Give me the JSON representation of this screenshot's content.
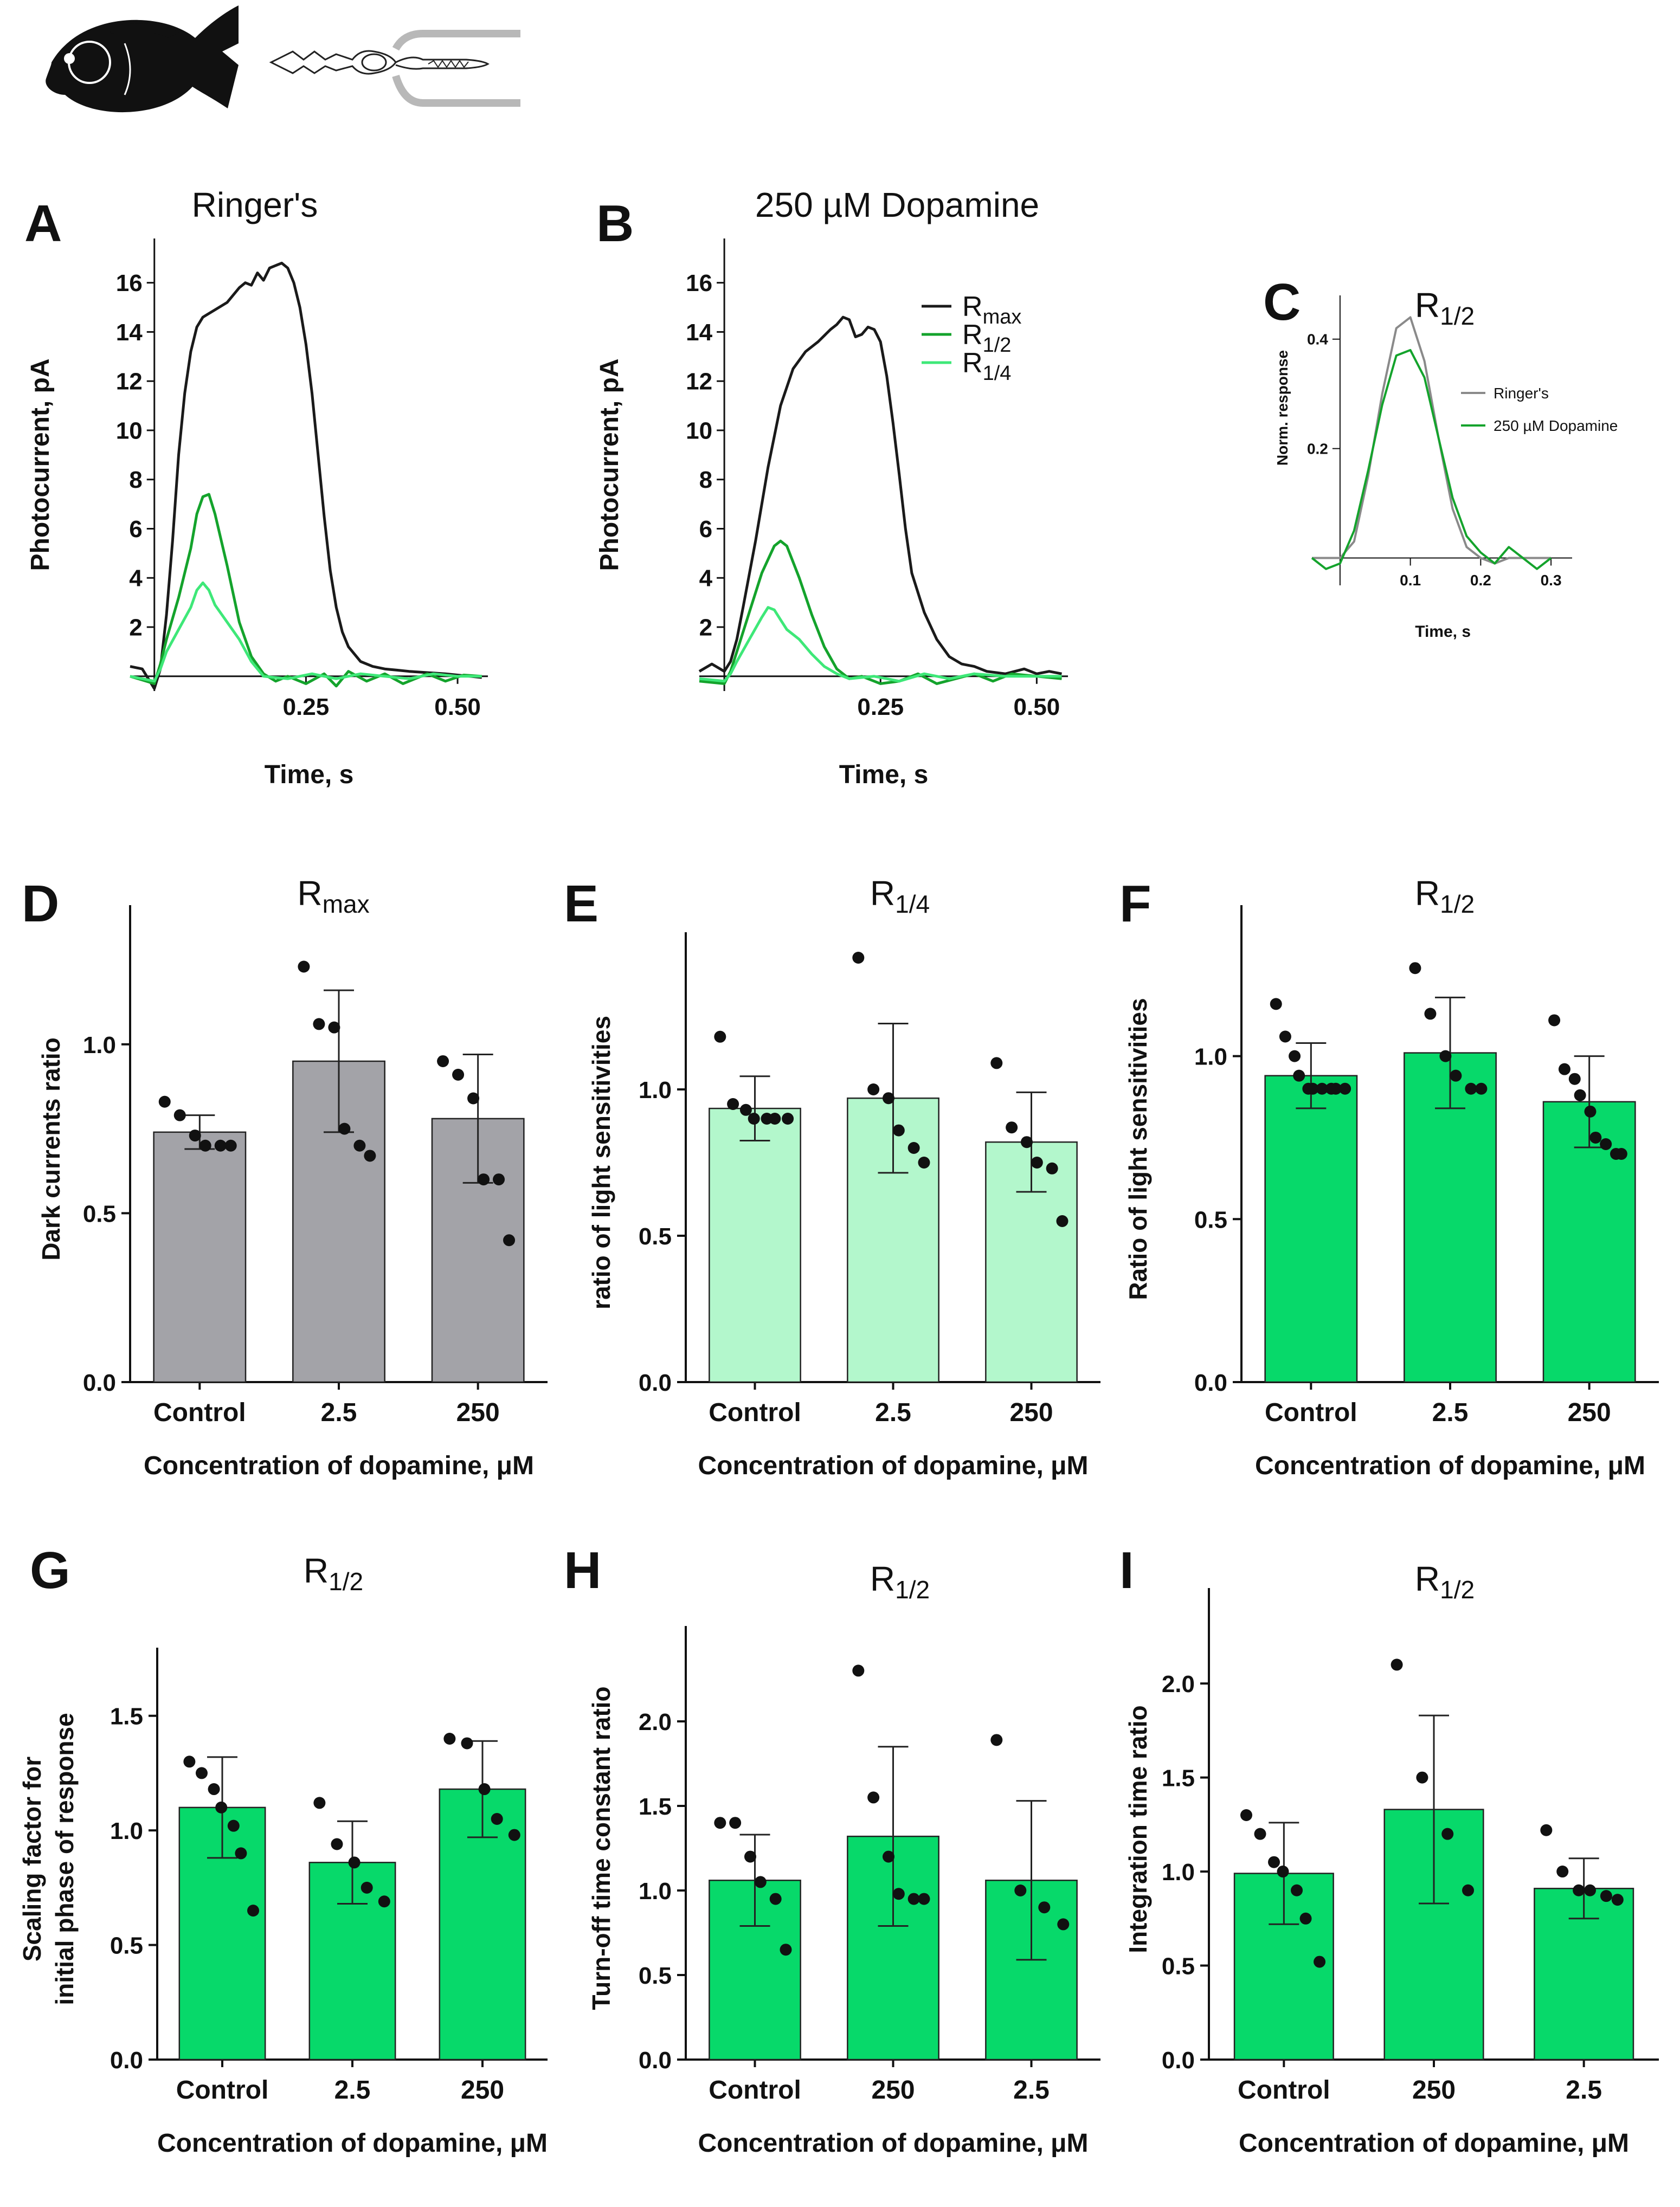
{
  "colors": {
    "black": "#1a1a1a",
    "gray_bar": "#a3a3a8",
    "light_green_bar": "#b3f7cc",
    "green_bar": "#07d96a",
    "dark_green_line": "#14a32c",
    "light_green_line": "#3ee878",
    "ringer_gray_line": "#8a8a8a"
  },
  "icons": [
    "fish-icon",
    "photoreceptor-cell-icon",
    "suction-pipette-icon"
  ],
  "chart_data": [
    {
      "id": "A",
      "letter": "A",
      "type": "line",
      "title": "Ringer's",
      "xlabel": "Time, s",
      "ylabel": "Photocurrent, pA",
      "xlim": [
        -0.04,
        0.55
      ],
      "ylim": [
        -0.6,
        17.8
      ],
      "xticks": [
        0.25,
        0.5
      ],
      "xtick_labels": [
        "0.25",
        "0.50"
      ],
      "yticks": [
        2,
        4,
        6,
        8,
        10,
        12,
        14,
        16
      ],
      "ytick_labels": [
        "2",
        "4",
        "6",
        "8",
        "10",
        "12",
        "14",
        "16"
      ],
      "series": [
        {
          "name": "Rmax",
          "color_key": "black",
          "x": [
            -0.04,
            -0.02,
            0,
            0.01,
            0.02,
            0.03,
            0.04,
            0.05,
            0.06,
            0.07,
            0.08,
            0.1,
            0.12,
            0.14,
            0.15,
            0.16,
            0.17,
            0.18,
            0.19,
            0.2,
            0.21,
            0.22,
            0.23,
            0.24,
            0.25,
            0.26,
            0.27,
            0.28,
            0.29,
            0.3,
            0.31,
            0.32,
            0.34,
            0.36,
            0.38,
            0.4,
            0.42,
            0.45,
            0.48,
            0.5,
            0.52,
            0.54
          ],
          "y": [
            0.4,
            0.3,
            -0.5,
            0.3,
            2.5,
            5.5,
            9,
            11.5,
            13.2,
            14.2,
            14.6,
            14.9,
            15.2,
            15.8,
            16,
            15.9,
            16.4,
            16.1,
            16.6,
            16.7,
            16.8,
            16.6,
            16,
            15,
            13.5,
            11.5,
            9,
            6.5,
            4.3,
            2.8,
            1.8,
            1.2,
            0.6,
            0.4,
            0.3,
            0.25,
            0.2,
            0.15,
            0.1,
            0.05,
            0,
            -0.05
          ]
        },
        {
          "name": "R1/2",
          "color_key": "dark_green_line",
          "x": [
            -0.04,
            0,
            0.01,
            0.02,
            0.04,
            0.06,
            0.07,
            0.08,
            0.09,
            0.1,
            0.12,
            0.14,
            0.16,
            0.18,
            0.2,
            0.22,
            0.25,
            0.28,
            0.3,
            0.32,
            0.35,
            0.38,
            0.41,
            0.45,
            0.48,
            0.51,
            0.54
          ],
          "y": [
            0,
            -0.3,
            0.5,
            1.5,
            3.2,
            5.2,
            6.6,
            7.3,
            7.4,
            6.6,
            4.5,
            2.2,
            0.8,
            0.1,
            -0.2,
            0,
            -0.3,
            0.1,
            -0.4,
            0.2,
            -0.2,
            0.1,
            -0.3,
            0.1,
            -0.2,
            0.05,
            0
          ]
        },
        {
          "name": "R1/4",
          "color_key": "light_green_line",
          "x": [
            -0.04,
            0,
            0.01,
            0.02,
            0.04,
            0.06,
            0.07,
            0.08,
            0.09,
            0.1,
            0.12,
            0.14,
            0.16,
            0.18,
            0.22,
            0.26,
            0.3,
            0.34,
            0.38,
            0.42,
            0.46,
            0.5,
            0.54
          ],
          "y": [
            0,
            -0.2,
            0.3,
            1,
            1.9,
            2.8,
            3.5,
            3.8,
            3.5,
            2.9,
            2.2,
            1.5,
            0.6,
            0,
            -0.1,
            0.1,
            -0.1,
            0.1,
            0,
            -0.1,
            0.1,
            0,
            0
          ]
        }
      ]
    },
    {
      "id": "B",
      "letter": "B",
      "type": "line",
      "title": "250 µM Dopamine",
      "xlabel": "Time, s",
      "ylabel": "Photocurrent, pA",
      "xlim": [
        -0.04,
        0.55
      ],
      "ylim": [
        -0.6,
        17.8
      ],
      "xticks": [
        0.25,
        0.5
      ],
      "xtick_labels": [
        "0.25",
        "0.50"
      ],
      "yticks": [
        2,
        4,
        6,
        8,
        10,
        12,
        14,
        16
      ],
      "ytick_labels": [
        "2",
        "4",
        "6",
        "8",
        "10",
        "12",
        "14",
        "16"
      ],
      "legend": [
        "R",
        "R",
        "R"
      ],
      "legend_sub": [
        "max",
        "1/2",
        "1/4"
      ],
      "series": [
        {
          "name": "Rmax",
          "color_key": "black",
          "x": [
            -0.04,
            -0.02,
            0,
            0.01,
            0.02,
            0.03,
            0.05,
            0.07,
            0.09,
            0.11,
            0.13,
            0.15,
            0.17,
            0.18,
            0.19,
            0.2,
            0.21,
            0.22,
            0.23,
            0.24,
            0.25,
            0.26,
            0.27,
            0.28,
            0.29,
            0.3,
            0.32,
            0.34,
            0.36,
            0.38,
            0.4,
            0.42,
            0.45,
            0.48,
            0.5,
            0.52,
            0.54
          ],
          "y": [
            0.2,
            0.5,
            0.2,
            0.6,
            1.5,
            2.8,
            5.5,
            8.5,
            11,
            12.5,
            13.2,
            13.6,
            14.1,
            14.3,
            14.6,
            14.5,
            13.8,
            13.9,
            14.2,
            14.1,
            13.6,
            12.2,
            10.3,
            8.2,
            6,
            4.2,
            2.6,
            1.5,
            0.8,
            0.5,
            0.4,
            0.2,
            0.1,
            0.3,
            0.1,
            0.2,
            0.1
          ]
        },
        {
          "name": "R1/2",
          "color_key": "dark_green_line",
          "x": [
            -0.04,
            0,
            0.01,
            0.02,
            0.04,
            0.06,
            0.08,
            0.09,
            0.1,
            0.12,
            0.14,
            0.16,
            0.18,
            0.2,
            0.22,
            0.25,
            0.28,
            0.31,
            0.34,
            0.37,
            0.4,
            0.43,
            0.46,
            0.5,
            0.54
          ],
          "y": [
            -0.2,
            -0.3,
            0.2,
            1,
            2.6,
            4.2,
            5.3,
            5.5,
            5.3,
            4,
            2.5,
            1.2,
            0.3,
            -0.1,
            0,
            -0.3,
            -0.2,
            0.1,
            -0.3,
            -0.1,
            0.1,
            -0.2,
            0.1,
            0,
            -0.1
          ]
        },
        {
          "name": "R1/4",
          "color_key": "light_green_line",
          "x": [
            -0.04,
            0,
            0.01,
            0.02,
            0.04,
            0.06,
            0.07,
            0.08,
            0.09,
            0.1,
            0.12,
            0.14,
            0.16,
            0.18,
            0.2,
            0.24,
            0.28,
            0.32,
            0.36,
            0.4,
            0.45,
            0.5,
            0.54
          ],
          "y": [
            -0.1,
            -0.2,
            0.1,
            0.6,
            1.5,
            2.4,
            2.8,
            2.7,
            2.3,
            1.9,
            1.5,
            0.9,
            0.4,
            0.1,
            -0.1,
            0,
            -0.2,
            0.1,
            -0.1,
            0.1,
            0,
            0,
            0
          ]
        }
      ]
    },
    {
      "id": "C",
      "letter": "C",
      "type": "line",
      "title": "R",
      "title_sub": "1/2",
      "xlabel": "Time, s",
      "ylabel": "Norm. response",
      "xlim": [
        -0.04,
        0.33
      ],
      "ylim": [
        -0.05,
        0.48
      ],
      "xticks": [
        0.1,
        0.2,
        0.3
      ],
      "xtick_labels": [
        "0.1",
        "0.2",
        "0.3"
      ],
      "yticks": [
        0.2,
        0.4
      ],
      "ytick_labels": [
        "0.2",
        "0.4"
      ],
      "legend": [
        "Ringer's",
        "250 µM Dopamine"
      ],
      "series": [
        {
          "name": "Ringer's",
          "color_key": "ringer_gray_line",
          "x": [
            -0.04,
            0,
            0.02,
            0.04,
            0.06,
            0.08,
            0.1,
            0.12,
            0.14,
            0.16,
            0.18,
            0.2,
            0.22,
            0.24,
            0.27,
            0.3
          ],
          "y": [
            0,
            0,
            0.03,
            0.15,
            0.3,
            0.42,
            0.44,
            0.36,
            0.22,
            0.09,
            0.02,
            0,
            -0.01,
            0,
            0,
            0
          ]
        },
        {
          "name": "250 µM Dopamine",
          "color_key": "dark_green_line",
          "x": [
            -0.04,
            -0.02,
            0,
            0.02,
            0.04,
            0.06,
            0.08,
            0.1,
            0.12,
            0.14,
            0.16,
            0.18,
            0.2,
            0.22,
            0.24,
            0.26,
            0.28,
            0.3
          ],
          "y": [
            0,
            -0.02,
            -0.01,
            0.05,
            0.16,
            0.28,
            0.37,
            0.38,
            0.33,
            0.22,
            0.11,
            0.04,
            0.01,
            -0.01,
            0.02,
            0,
            -0.02,
            0
          ]
        }
      ]
    },
    {
      "id": "D",
      "letter": "D",
      "type": "bar",
      "title": "R",
      "title_sub": "max",
      "xlabel": "Concentration of dopamine, μM",
      "ylabel": "Dark currents ratio",
      "categories": [
        "Control",
        "2.5",
        "250"
      ],
      "ylim": [
        0,
        1.38
      ],
      "yticks": [
        0,
        0.5,
        1.0
      ],
      "ytick_labels": [
        "0.0",
        "0.5",
        "1.0"
      ],
      "bar_color_key": "gray_bar",
      "values": [
        0.74,
        0.95,
        0.78
      ],
      "err": [
        0.05,
        0.21,
        0.19
      ],
      "points": [
        [
          0.83,
          0.79,
          0.73,
          0.7,
          0.7,
          0.7
        ],
        [
          1.23,
          1.06,
          1.05,
          0.75,
          0.7,
          0.67
        ],
        [
          0.95,
          0.91,
          0.84,
          0.6,
          0.6,
          0.42
        ]
      ]
    },
    {
      "id": "E",
      "letter": "E",
      "type": "bar",
      "title": "R",
      "title_sub": "1/4",
      "xlabel": "Concentration of dopamine, μM",
      "ylabel": "ratio of light sensitivities",
      "categories": [
        "Control",
        "2.5",
        "250"
      ],
      "ylim": [
        0,
        1.5
      ],
      "yticks": [
        0,
        0.5,
        1.0
      ],
      "ytick_labels": [
        "0.0",
        "0.5",
        "1.0"
      ],
      "bar_color_key": "light_green_bar",
      "values": [
        0.935,
        0.97,
        0.82
      ],
      "err": [
        0.11,
        0.255,
        0.17
      ],
      "points": [
        [
          1.18,
          0.95,
          0.93,
          0.9,
          0.9,
          0.9,
          0.9
        ],
        [
          1.45,
          1.0,
          0.97,
          0.86,
          0.8,
          0.75
        ],
        [
          1.09,
          0.87,
          0.82,
          0.75,
          0.73,
          0.55
        ]
      ]
    },
    {
      "id": "F",
      "letter": "F",
      "type": "bar",
      "title": "R",
      "title_sub": "1/2",
      "xlabel": "Concentration of dopamine, μM",
      "ylabel": "Ratio of light sensitivities",
      "categories": [
        "Control",
        "2.5",
        "250"
      ],
      "ylim": [
        0,
        1.43
      ],
      "yticks": [
        0,
        0.5,
        1.0
      ],
      "ytick_labels": [
        "0.0",
        "0.5",
        "1.0"
      ],
      "bar_color_key": "green_bar",
      "values": [
        0.94,
        1.01,
        0.86
      ],
      "err": [
        0.1,
        0.17,
        0.14
      ],
      "points": [
        [
          1.16,
          1.06,
          1.0,
          0.94,
          0.9,
          0.9,
          0.9,
          0.9,
          0.9,
          0.9
        ],
        [
          1.27,
          1.13,
          1.0,
          0.94,
          0.9,
          0.9
        ],
        [
          1.11,
          0.96,
          0.93,
          0.88,
          0.83,
          0.75,
          0.73,
          0.7,
          0.7
        ]
      ]
    },
    {
      "id": "G",
      "letter": "G",
      "type": "bar",
      "title": "R",
      "title_sub": "1/2",
      "xlabel": "Concentration of dopamine, μM",
      "ylabel": "Scaling factor for initial phase of response",
      "categories": [
        "Control",
        "2.5",
        "250"
      ],
      "ylim": [
        0,
        1.75
      ],
      "yticks": [
        0,
        0.5,
        1.0,
        1.5
      ],
      "ytick_labels": [
        "0.0",
        "0.5",
        "1.0",
        "1.5"
      ],
      "bar_color_key": "green_bar",
      "values": [
        1.1,
        0.86,
        1.18
      ],
      "err": [
        0.22,
        0.18,
        0.21
      ],
      "points": [
        [
          1.3,
          1.25,
          1.18,
          1.1,
          1.02,
          0.9,
          0.65
        ],
        [
          1.12,
          0.94,
          0.86,
          0.75,
          0.69
        ],
        [
          1.4,
          1.38,
          1.18,
          1.05,
          0.98
        ]
      ]
    },
    {
      "id": "H",
      "letter": "H",
      "type": "bar",
      "title": "R",
      "title_sub": "1/2",
      "xlabel": "Concentration of dopamine, μM",
      "ylabel": "Turn-off time constant ratio",
      "categories": [
        "Control",
        "250",
        "2.5"
      ],
      "ylim": [
        0,
        2.5
      ],
      "yticks": [
        0,
        0.5,
        1.0,
        1.5,
        2.0
      ],
      "ytick_labels": [
        "0.0",
        "0.5",
        "1.0",
        "1.5",
        "2.0"
      ],
      "bar_color_key": "green_bar",
      "values": [
        1.06,
        1.32,
        1.06
      ],
      "err": [
        0.27,
        0.53,
        0.47
      ],
      "points": [
        [
          1.4,
          1.4,
          1.2,
          1.05,
          0.95,
          0.65
        ],
        [
          2.3,
          1.55,
          1.2,
          0.98,
          0.95,
          0.95
        ],
        [
          1.89,
          1.0,
          0.9,
          0.8
        ]
      ]
    },
    {
      "id": "I",
      "letter": "I",
      "type": "bar",
      "title": "R",
      "title_sub": "1/2",
      "xlabel": "Concentration of dopamine, μM",
      "ylabel": "Integration time ratio",
      "categories": [
        "Control",
        "250",
        "2.5"
      ],
      "ylim": [
        0,
        2.45
      ],
      "yticks": [
        0,
        0.5,
        1.0,
        1.5,
        2.0
      ],
      "ytick_labels": [
        "0.0",
        "0.5",
        "1.0",
        "1.5",
        "2.0"
      ],
      "bar_color_key": "green_bar",
      "values": [
        0.99,
        1.33,
        0.91
      ],
      "err": [
        0.27,
        0.5,
        0.16
      ],
      "points": [
        [
          1.3,
          1.2,
          1.05,
          1.0,
          0.9,
          0.75,
          0.52
        ],
        [
          2.1,
          1.5,
          1.2,
          0.9
        ],
        [
          1.22,
          1.0,
          0.9,
          0.9,
          0.87,
          0.85
        ]
      ]
    }
  ]
}
